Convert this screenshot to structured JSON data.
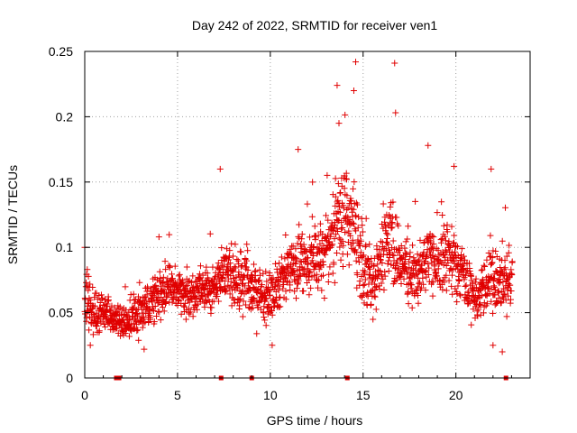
{
  "chart_data": {
    "type": "scatter",
    "title": "Day 242 of 2022, SRMTID for receiver ven1",
    "xlabel": "GPS time / hours",
    "ylabel": "SRMTID / TECUs",
    "xlim": [
      0,
      24
    ],
    "ylim": [
      0,
      0.25
    ],
    "grid": true,
    "marker": "+",
    "color": "#e00000",
    "x_ticks": [
      {
        "value": 0,
        "label": "0"
      },
      {
        "value": 5,
        "label": "5"
      },
      {
        "value": 10,
        "label": "10"
      },
      {
        "value": 15,
        "label": "15"
      },
      {
        "value": 20,
        "label": "20"
      }
    ],
    "y_ticks": [
      {
        "value": 0,
        "label": "0"
      },
      {
        "value": 0.05,
        "label": "0.05"
      },
      {
        "value": 0.1,
        "label": "0.1"
      },
      {
        "value": 0.15,
        "label": "0.15"
      },
      {
        "value": 0.2,
        "label": "0.2"
      },
      {
        "value": 0.25,
        "label": "0.25"
      }
    ],
    "baseline_markers_x": [
      1.7,
      1.85,
      7.35,
      9.0,
      14.15,
      22.7
    ],
    "trend_profile": [
      [
        0.0,
        0.06,
        0.015
      ],
      [
        0.5,
        0.05,
        0.012
      ],
      [
        1.0,
        0.05,
        0.012
      ],
      [
        1.5,
        0.048,
        0.012
      ],
      [
        2.0,
        0.044,
        0.01
      ],
      [
        2.5,
        0.046,
        0.01
      ],
      [
        3.0,
        0.05,
        0.012
      ],
      [
        3.5,
        0.058,
        0.012
      ],
      [
        4.0,
        0.065,
        0.012
      ],
      [
        4.5,
        0.07,
        0.012
      ],
      [
        5.0,
        0.068,
        0.012
      ],
      [
        5.5,
        0.062,
        0.012
      ],
      [
        6.0,
        0.065,
        0.012
      ],
      [
        6.5,
        0.068,
        0.012
      ],
      [
        7.0,
        0.07,
        0.013
      ],
      [
        7.5,
        0.08,
        0.02
      ],
      [
        8.0,
        0.075,
        0.018
      ],
      [
        8.5,
        0.075,
        0.018
      ],
      [
        9.0,
        0.068,
        0.015
      ],
      [
        9.5,
        0.065,
        0.015
      ],
      [
        10.0,
        0.06,
        0.015
      ],
      [
        10.5,
        0.072,
        0.015
      ],
      [
        11.0,
        0.085,
        0.018
      ],
      [
        11.5,
        0.09,
        0.02
      ],
      [
        12.0,
        0.088,
        0.018
      ],
      [
        12.5,
        0.092,
        0.02
      ],
      [
        13.0,
        0.095,
        0.02
      ],
      [
        13.5,
        0.11,
        0.022
      ],
      [
        14.0,
        0.13,
        0.028
      ],
      [
        14.5,
        0.115,
        0.025
      ],
      [
        15.0,
        0.085,
        0.02
      ],
      [
        15.5,
        0.072,
        0.018
      ],
      [
        16.0,
        0.09,
        0.02
      ],
      [
        16.5,
        0.11,
        0.025
      ],
      [
        17.0,
        0.09,
        0.02
      ],
      [
        17.5,
        0.08,
        0.018
      ],
      [
        18.0,
        0.08,
        0.018
      ],
      [
        18.5,
        0.095,
        0.022
      ],
      [
        19.0,
        0.085,
        0.02
      ],
      [
        19.5,
        0.095,
        0.02
      ],
      [
        20.0,
        0.088,
        0.02
      ],
      [
        20.5,
        0.075,
        0.018
      ],
      [
        21.0,
        0.06,
        0.015
      ],
      [
        21.5,
        0.072,
        0.015
      ],
      [
        22.0,
        0.08,
        0.018
      ],
      [
        22.5,
        0.07,
        0.018
      ],
      [
        23.0,
        0.075,
        0.015
      ]
    ],
    "notable_points": [
      {
        "x": 14.6,
        "y": 0.242
      },
      {
        "x": 16.7,
        "y": 0.241
      },
      {
        "x": 13.6,
        "y": 0.224
      },
      {
        "x": 14.5,
        "y": 0.22
      },
      {
        "x": 16.75,
        "y": 0.203
      },
      {
        "x": 13.7,
        "y": 0.195
      },
      {
        "x": 18.5,
        "y": 0.178
      },
      {
        "x": 11.5,
        "y": 0.175
      },
      {
        "x": 19.9,
        "y": 0.162
      },
      {
        "x": 7.3,
        "y": 0.16
      },
      {
        "x": 21.9,
        "y": 0.16
      },
      {
        "x": 0.0,
        "y": 0.1
      },
      {
        "x": 4.0,
        "y": 0.108
      },
      {
        "x": 22.5,
        "y": 0.02
      },
      {
        "x": 22.0,
        "y": 0.025
      },
      {
        "x": 3.2,
        "y": 0.022
      },
      {
        "x": 0.3,
        "y": 0.025
      },
      {
        "x": 10.1,
        "y": 0.025
      }
    ]
  }
}
